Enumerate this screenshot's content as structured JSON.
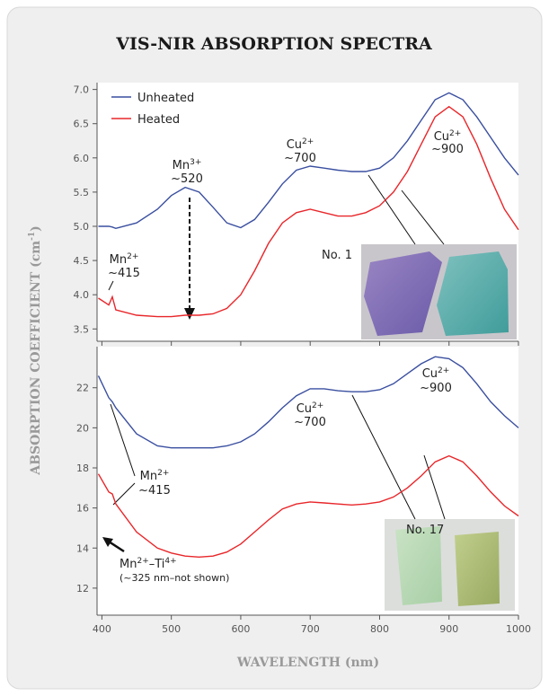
{
  "title": "VIS-NIR ABSORPTION SPECTRA",
  "y_label": {
    "main": "ABSORPTION COEFFICIENT (cm",
    "sup": "-1",
    "end": ")"
  },
  "chart_data": [
    {
      "type": "line",
      "x": [
        395,
        410,
        415,
        420,
        450,
        480,
        500,
        520,
        540,
        560,
        580,
        600,
        620,
        640,
        660,
        680,
        700,
        720,
        740,
        760,
        780,
        800,
        820,
        840,
        860,
        880,
        900,
        920,
        940,
        960,
        980,
        1000
      ],
      "xlim": [
        393,
        1000
      ],
      "ylim": [
        3.32,
        7.1
      ],
      "yticks": [
        3.5,
        {
          "value": 4,
          "label": "4.0"
        },
        4.5,
        {
          "value": 5,
          "label": "5.0"
        },
        5.5,
        {
          "value": 6,
          "label": "6.0"
        },
        6.5,
        {
          "value": 7,
          "label": "7.0"
        }
      ],
      "series": [
        {
          "name": "Unheated",
          "color": "#3a4fa0",
          "values": [
            5.0,
            5.0,
            4.99,
            4.97,
            5.05,
            5.25,
            5.45,
            5.57,
            5.5,
            5.28,
            5.05,
            4.98,
            5.1,
            5.35,
            5.62,
            5.82,
            5.88,
            5.85,
            5.82,
            5.8,
            5.8,
            5.85,
            6.0,
            6.25,
            6.55,
            6.85,
            6.95,
            6.85,
            6.6,
            6.3,
            6.0,
            5.75
          ]
        },
        {
          "name": "Heated",
          "color": "#e8262a",
          "values": [
            3.95,
            3.85,
            3.97,
            3.78,
            3.7,
            3.68,
            3.68,
            3.7,
            3.7,
            3.72,
            3.8,
            4.0,
            4.35,
            4.75,
            5.05,
            5.2,
            5.25,
            5.2,
            5.15,
            5.15,
            5.2,
            5.3,
            5.5,
            5.8,
            6.2,
            6.6,
            6.75,
            6.6,
            6.2,
            5.7,
            5.25,
            4.95
          ]
        }
      ],
      "annotations": [
        {
          "ion": "Mn",
          "charge": "3+",
          "wavelength": "~520"
        },
        {
          "ion": "Cu",
          "charge": "2+",
          "wavelength": "~700"
        },
        {
          "ion": "Cu",
          "charge": "2+",
          "wavelength": "~900"
        },
        {
          "ion": "Mn",
          "charge": "2+",
          "wavelength": "~415"
        }
      ],
      "sample_label": "No. 1"
    },
    {
      "type": "line",
      "x": [
        395,
        410,
        415,
        420,
        450,
        480,
        500,
        520,
        540,
        560,
        580,
        600,
        620,
        640,
        660,
        680,
        700,
        720,
        740,
        760,
        780,
        800,
        820,
        840,
        860,
        880,
        900,
        920,
        940,
        960,
        980,
        1000
      ],
      "xlim": [
        393,
        1000
      ],
      "xticks": [
        400,
        500,
        600,
        700,
        800,
        900,
        1000
      ],
      "x_label": "WAVELENGTH (nm)",
      "ylim": [
        10.65,
        24.05
      ],
      "yticks": [
        12,
        14,
        16,
        18,
        20,
        22
      ],
      "series": [
        {
          "color": "#3a4fa0",
          "values": [
            22.6,
            21.5,
            21.3,
            21.0,
            19.7,
            19.1,
            19.0,
            19.0,
            19.0,
            19.0,
            19.1,
            19.3,
            19.7,
            20.3,
            21.0,
            21.6,
            21.95,
            21.95,
            21.85,
            21.8,
            21.8,
            21.9,
            22.2,
            22.7,
            23.2,
            23.55,
            23.45,
            23.0,
            22.2,
            21.3,
            20.6,
            20.0
          ]
        },
        {
          "color": "#e8262a",
          "values": [
            17.7,
            16.8,
            16.7,
            16.2,
            14.8,
            14.0,
            13.75,
            13.6,
            13.55,
            13.6,
            13.8,
            14.2,
            14.8,
            15.4,
            15.95,
            16.2,
            16.3,
            16.25,
            16.2,
            16.15,
            16.2,
            16.3,
            16.55,
            17.0,
            17.6,
            18.3,
            18.6,
            18.3,
            17.6,
            16.8,
            16.1,
            15.6
          ]
        }
      ],
      "annotations": [
        {
          "ion": "Cu",
          "charge": "2+",
          "wavelength": "~900"
        },
        {
          "ion": "Cu",
          "charge": "2+",
          "wavelength": "~700"
        },
        {
          "ion": "Mn",
          "charge": "2+",
          "wavelength": "~415"
        }
      ],
      "note": {
        "parts": [
          "Mn",
          "2+",
          "–Ti",
          "4+"
        ],
        "detail": "(~325 nm–not shown)"
      },
      "sample_label": "No. 17"
    }
  ]
}
